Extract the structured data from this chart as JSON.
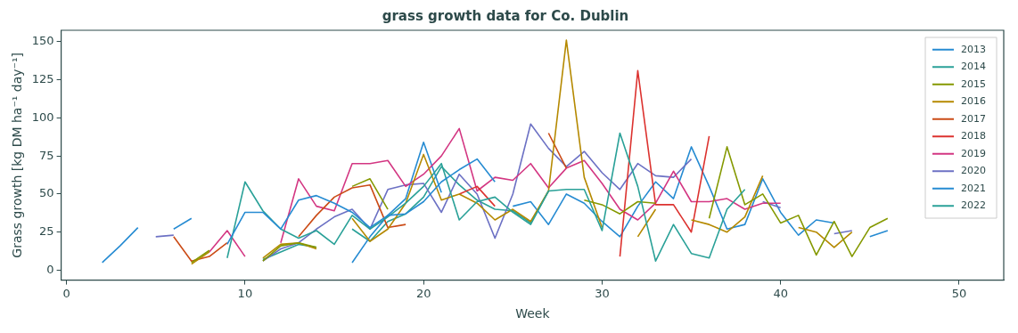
{
  "chart_data": {
    "type": "line",
    "title": "grass growth data for Co. Dublin",
    "xlabel": "Week",
    "ylabel": "Grass growth [kg DM ha⁻¹ day⁻¹]",
    "xlim": [
      -0.3,
      52.5
    ],
    "ylim": [
      -6.5,
      157.5
    ],
    "xticks": [
      0,
      10,
      20,
      30,
      40,
      50
    ],
    "yticks": [
      0,
      25,
      50,
      75,
      100,
      125,
      150
    ],
    "grid": false,
    "legend": "top right",
    "marker": "none",
    "line_style": "solid",
    "series": [
      {
        "name": "2013",
        "color": "#268bd2",
        "x": [
          2,
          3,
          4,
          5,
          6,
          7,
          8,
          9,
          10,
          11,
          12,
          13,
          14,
          15,
          16,
          17,
          18,
          19,
          20,
          21,
          22,
          23,
          24
        ],
        "values": [
          5,
          16,
          28,
          null,
          27,
          34,
          null,
          17,
          38,
          38,
          27,
          46,
          49,
          44,
          38,
          28,
          36,
          37,
          45,
          58,
          66,
          73,
          58
        ]
      },
      {
        "name": "2014",
        "color": "#2aa198",
        "x": [
          9,
          10,
          11,
          12,
          13,
          14,
          15,
          16,
          17,
          18,
          19,
          20,
          21,
          22,
          23,
          24,
          25,
          26,
          27,
          28,
          29,
          30,
          31,
          32,
          33,
          34,
          35,
          36,
          37,
          38
        ],
        "values": [
          8,
          58,
          39,
          27,
          21,
          26,
          17,
          36,
          27,
          35,
          44,
          55,
          70,
          33,
          45,
          48,
          38,
          30,
          52,
          53,
          53,
          26,
          90,
          55,
          6,
          30,
          11,
          8,
          40,
          53
        ]
      },
      {
        "name": "2015",
        "color": "#859900",
        "x": [
          7,
          8,
          9,
          10,
          11,
          12,
          13,
          14,
          15,
          16,
          17,
          18,
          19,
          20,
          21,
          22,
          23,
          24,
          25,
          26,
          27,
          28,
          29,
          30,
          31,
          32,
          33,
          34,
          35,
          36,
          37,
          38,
          39,
          40,
          41,
          42,
          43,
          44,
          45,
          46
        ],
        "values": [
          5,
          13,
          null,
          null,
          6,
          16,
          18,
          15,
          null,
          55,
          60,
          40,
          null,
          null,
          null,
          null,
          null,
          null,
          null,
          null,
          null,
          null,
          46,
          43,
          37,
          45,
          44,
          null,
          null,
          34,
          81,
          43,
          50,
          31,
          36,
          10,
          32,
          9,
          28,
          34
        ]
      },
      {
        "name": "2016",
        "color": "#b58900",
        "x": [
          7,
          8,
          9,
          10,
          11,
          12,
          13,
          14,
          15,
          16,
          17,
          18,
          19,
          20,
          21,
          22,
          23,
          24,
          25,
          26,
          27,
          28,
          29,
          30,
          31,
          32,
          33,
          34,
          35,
          36,
          37,
          38,
          39,
          40,
          41,
          42,
          43,
          44
        ],
        "values": [
          4,
          12,
          null,
          null,
          8,
          17,
          18,
          14,
          null,
          34,
          19,
          27,
          44,
          76,
          46,
          50,
          44,
          33,
          40,
          32,
          52,
          151,
          61,
          28,
          null,
          22,
          40,
          null,
          33,
          30,
          25,
          35,
          62,
          null,
          28,
          25,
          15,
          25
        ]
      },
      {
        "name": "2017",
        "color": "#cb4b16",
        "x": [
          6,
          7,
          8,
          9,
          10,
          11,
          12,
          13,
          14,
          15,
          16,
          17,
          18,
          19,
          20,
          21,
          22,
          23,
          24,
          25,
          26,
          27,
          28
        ],
        "values": [
          22,
          6,
          9,
          18,
          null,
          null,
          null,
          22,
          36,
          48,
          54,
          56,
          28,
          30,
          null,
          null,
          null,
          null,
          null,
          null,
          null,
          90,
          67
        ]
      },
      {
        "name": "2018",
        "color": "#dc322f",
        "x": [
          22,
          23,
          24,
          25,
          26,
          27,
          28,
          29,
          30,
          31,
          32,
          33,
          34,
          35,
          36
        ],
        "values": [
          50,
          55,
          42,
          null,
          null,
          null,
          null,
          null,
          null,
          9,
          131,
          43,
          43,
          25,
          88
        ]
      },
      {
        "name": "2019",
        "color": "#d33682",
        "x": [
          8,
          9,
          10,
          11,
          12,
          13,
          14,
          15,
          16,
          17,
          18,
          19,
          20,
          21,
          22,
          23,
          24,
          25,
          26,
          27,
          28,
          29,
          30,
          31,
          32,
          33,
          34,
          35,
          36,
          37,
          38,
          39,
          40
        ],
        "values": [
          12,
          26,
          9,
          null,
          18,
          60,
          42,
          39,
          70,
          70,
          72,
          55,
          63,
          75,
          93,
          52,
          61,
          59,
          70,
          54,
          67,
          72,
          57,
          40,
          33,
          44,
          65,
          45,
          45,
          47,
          40,
          44,
          44
        ]
      },
      {
        "name": "2020",
        "color": "#6c71c4",
        "x": [
          5,
          6,
          7,
          8,
          9,
          10,
          11,
          12,
          13,
          14,
          15,
          16,
          17,
          18,
          19,
          20,
          21,
          22,
          23,
          24,
          25,
          26,
          27,
          28,
          29,
          30,
          31,
          32,
          33,
          34,
          35,
          36,
          37,
          38,
          39,
          40,
          41,
          42,
          43,
          44
        ],
        "values": [
          22,
          23,
          null,
          null,
          null,
          null,
          6,
          14,
          18,
          27,
          35,
          40,
          27,
          53,
          56,
          57,
          38,
          63,
          50,
          21,
          50,
          96,
          80,
          68,
          78,
          64,
          53,
          70,
          62,
          61,
          73,
          null,
          null,
          null,
          45,
          41,
          null,
          null,
          24,
          26
        ]
      },
      {
        "name": "2021",
        "color": "#268bd2",
        "x": [
          16,
          17,
          18,
          19,
          20,
          21,
          22,
          23,
          24,
          25,
          26,
          27,
          28,
          29,
          30,
          31,
          32,
          33,
          34,
          35,
          36,
          37,
          38,
          39,
          40,
          41,
          42,
          43,
          44,
          45,
          46
        ],
        "values": [
          5,
          22,
          36,
          47,
          84,
          51,
          null,
          null,
          null,
          42,
          45,
          30,
          50,
          44,
          32,
          22,
          42,
          58,
          47,
          81,
          55,
          27,
          30,
          60,
          38,
          23,
          33,
          31,
          null,
          22,
          26
        ]
      },
      {
        "name": "2022",
        "color": "#2aa198",
        "x": [
          11,
          12,
          13,
          14,
          15,
          16,
          17,
          18,
          19,
          20,
          21,
          22,
          23,
          24,
          25,
          26,
          27
        ],
        "values": [
          7,
          12,
          17,
          15,
          null,
          27,
          19,
          32,
          37,
          48,
          68,
          56,
          46,
          40,
          39,
          31,
          52
        ]
      }
    ]
  }
}
